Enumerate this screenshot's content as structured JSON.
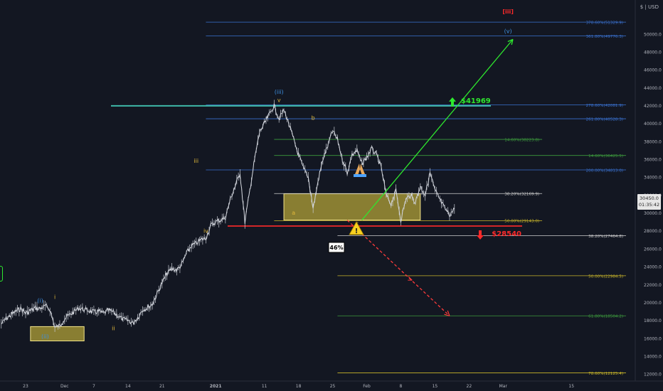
{
  "header": {
    "currency": "$ | USD"
  },
  "price_tag": {
    "price": "30450.0",
    "countdown": "01:35:42"
  },
  "chart_data": {
    "type": "line",
    "series_name": "",
    "x_ticks": [
      {
        "label": "23",
        "d": 0
      },
      {
        "label": "Dec",
        "d": 8
      },
      {
        "label": "7",
        "d": 14
      },
      {
        "label": "14",
        "d": 21
      },
      {
        "label": "21",
        "d": 28
      },
      {
        "label": "2021",
        "d": 39
      },
      {
        "label": "11",
        "d": 49
      },
      {
        "label": "18",
        "d": 56
      },
      {
        "label": "25",
        "d": 63
      },
      {
        "label": "Feb",
        "d": 70
      },
      {
        "label": "8",
        "d": 77
      },
      {
        "label": "15",
        "d": 84
      },
      {
        "label": "22",
        "d": 91
      },
      {
        "label": "Mar",
        "d": 98
      },
      {
        "label": "15",
        "d": 112
      }
    ],
    "y_ticks": [
      12000,
      14000,
      16000,
      18000,
      20000,
      22000,
      24000,
      26000,
      28000,
      30000,
      32000,
      34000,
      36000,
      38000,
      40000,
      42000,
      44000,
      46000,
      48000,
      50000
    ],
    "ylim": [
      10500,
      53800
    ],
    "price_path": [
      [
        -5,
        17600
      ],
      [
        -4,
        18200
      ],
      [
        -3,
        18600
      ],
      [
        -2,
        19000
      ],
      [
        -1,
        19300
      ],
      [
        0,
        18800
      ],
      [
        1,
        19100
      ],
      [
        2,
        19400
      ],
      [
        3,
        19300
      ],
      [
        4,
        19600
      ],
      [
        5,
        19200
      ],
      [
        6,
        17200
      ],
      [
        7,
        17400
      ],
      [
        8,
        18200
      ],
      [
        9,
        18600
      ],
      [
        10,
        19000
      ],
      [
        11,
        19400
      ],
      [
        12,
        19200
      ],
      [
        13,
        19100
      ],
      [
        14,
        18900
      ],
      [
        15,
        19000
      ],
      [
        16,
        18800
      ],
      [
        17,
        19100
      ],
      [
        18,
        18900
      ],
      [
        19,
        18500
      ],
      [
        20,
        18100
      ],
      [
        21,
        18000
      ],
      [
        22,
        17700
      ],
      [
        23,
        18300
      ],
      [
        24,
        19200
      ],
      [
        25,
        19400
      ],
      [
        26,
        19800
      ],
      [
        27,
        21000
      ],
      [
        28,
        22200
      ],
      [
        29,
        23200
      ],
      [
        30,
        23800
      ],
      [
        31,
        23600
      ],
      [
        32,
        24200
      ],
      [
        33,
        25500
      ],
      [
        34,
        26300
      ],
      [
        35,
        26600
      ],
      [
        36,
        27000
      ],
      [
        37,
        27200
      ],
      [
        38,
        28600
      ],
      [
        39,
        29000
      ],
      [
        40,
        29200
      ],
      [
        41,
        29500
      ],
      [
        42,
        31500
      ],
      [
        43,
        33000
      ],
      [
        44,
        34500
      ],
      [
        45,
        29000
      ],
      [
        46,
        32500
      ],
      [
        47,
        36000
      ],
      [
        48,
        39000
      ],
      [
        49,
        40000
      ],
      [
        50,
        41000
      ],
      [
        51,
        42000
      ],
      [
        52,
        40500
      ],
      [
        53,
        41500
      ],
      [
        54,
        40000
      ],
      [
        55,
        38200
      ],
      [
        56,
        36500
      ],
      [
        57,
        35000
      ],
      [
        58,
        34000
      ],
      [
        59,
        30500
      ],
      [
        60,
        33500
      ],
      [
        61,
        36000
      ],
      [
        62,
        37500
      ],
      [
        63,
        39200
      ],
      [
        64,
        38200
      ],
      [
        65,
        36000
      ],
      [
        66,
        34500
      ],
      [
        67,
        36500
      ],
      [
        68,
        37000
      ],
      [
        69,
        35500
      ],
      [
        70,
        36200
      ],
      [
        71,
        37200
      ],
      [
        72,
        36500
      ],
      [
        73,
        35000
      ],
      [
        74,
        32000
      ],
      [
        75,
        31000
      ],
      [
        76,
        32500
      ],
      [
        77,
        29200
      ],
      [
        78,
        31500
      ],
      [
        79,
        32000
      ],
      [
        80,
        31200
      ],
      [
        81,
        33000
      ],
      [
        82,
        32000
      ],
      [
        83,
        34500
      ],
      [
        84,
        32500
      ],
      [
        85,
        31500
      ],
      [
        86,
        30500
      ],
      [
        87,
        29800
      ],
      [
        88,
        30450
      ]
    ],
    "fib_levels": [
      {
        "label": "378.60%(51329.9)",
        "price": 51329.9,
        "color": "#3a72d1",
        "d0": 37,
        "d1": 160
      },
      {
        "label": "361.80%(49776.3)",
        "price": 49776.3,
        "color": "#3a72d1",
        "d0": 37,
        "d1": 160
      },
      {
        "label": "278.60%(42081.9)",
        "price": 42081.9,
        "color": "#3a72d1",
        "d0": 37,
        "d1": 160
      },
      {
        "label": "261.80%(40528.3)",
        "price": 40528.3,
        "color": "#3a72d1",
        "d0": 37,
        "d1": 160
      },
      {
        "label": "14.60%(38223.8)",
        "price": 38223.8,
        "color": "#3d9c3d",
        "d0": 51,
        "d1": 106
      },
      {
        "label": "14.60%(36425.5)",
        "price": 36425.5,
        "color": "#3d9c3d",
        "d0": 51,
        "d1": 160
      },
      {
        "label": "200.00%(34813.0)",
        "price": 34813.0,
        "color": "#3a72d1",
        "d0": 37,
        "d1": 160
      },
      {
        "label": "38.20%(32169.9)",
        "price": 32169.9,
        "color": "#cfcfcf",
        "d0": 51,
        "d1": 106
      },
      {
        "label": "50.00%(29143.0)",
        "price": 29143.0,
        "color": "#c9b62a",
        "d0": 51,
        "d1": 106
      },
      {
        "label": "38.20%(27464.8)",
        "price": 27464.8,
        "color": "#cfcfcf",
        "d0": 64,
        "d1": 160
      },
      {
        "label": "50.00%(22984.5)",
        "price": 22984.5,
        "color": "#c9b62a",
        "d0": 64,
        "d1": 160
      },
      {
        "label": "61.80%(18504.2)",
        "price": 18504.2,
        "color": "#3d9c3d",
        "d0": 64,
        "d1": 160
      },
      {
        "label": "78.60%(12125.4)",
        "price": 12125.4,
        "color": "#c9b62a",
        "d0": 64,
        "d1": 160
      }
    ],
    "zones": [
      {
        "d0": 1,
        "d1": 12,
        "p0": 15700,
        "p1": 17300
      },
      {
        "d0": 53,
        "d1": 81,
        "p0": 29200,
        "p1": 32150
      }
    ],
    "key_levels": [
      {
        "label": "$41969",
        "price": 41969,
        "color": "#2ee82e",
        "direction": "up"
      },
      {
        "label": "$28540",
        "price": 28540,
        "color": "#ff2a2a",
        "direction": "down"
      }
    ],
    "wave_labels": [
      {
        "text": "(i)",
        "d": 3,
        "p": 20000,
        "color": "#3d8fe0"
      },
      {
        "text": "(ii)",
        "d": 4,
        "p": 16000,
        "color": "#3d8fe0"
      },
      {
        "text": "i",
        "d": 6,
        "p": 20400,
        "color": "#e0b83a"
      },
      {
        "text": "ii",
        "d": 18,
        "p": 16900,
        "color": "#e0b83a"
      },
      {
        "text": "iii",
        "d": 35,
        "p": 35600,
        "color": "#e0b83a"
      },
      {
        "text": "iv",
        "d": 37,
        "p": 27800,
        "color": "#e0b83a"
      },
      {
        "text": "(iii)",
        "d": 52,
        "p": 43300,
        "color": "#3d8fe0"
      },
      {
        "text": "v",
        "d": 52,
        "p": 42400,
        "color": "#e0b83a"
      },
      {
        "text": "a",
        "d": 55,
        "p": 29800,
        "color": "#e0b83a"
      },
      {
        "text": "b",
        "d": 59,
        "p": 40400,
        "color": "#e0b83a"
      },
      {
        "text": "c",
        "d": 68,
        "p": 28600,
        "color": "#e0b83a"
      },
      {
        "text": "(iv)",
        "d": 68,
        "p": 27800,
        "color": "#3d8fe0"
      },
      {
        "text": "(v)",
        "d": 99,
        "p": 50100,
        "color": "#3d8fe0"
      },
      {
        "text": "[iii]",
        "d": 99,
        "p": 52300,
        "color": "#ff2a2a"
      }
    ],
    "projections": [
      {
        "kind": "up",
        "d0": 69,
        "p0": 29200,
        "d1": 100,
        "p1": 49400,
        "color": "#2ee82e"
      },
      {
        "kind": "down",
        "d0": 66,
        "p0": 29200,
        "d1": 87,
        "p1": 18500,
        "color": "#ff3b3b"
      }
    ],
    "percent_label": "46%",
    "warning_symbol": "!"
  }
}
